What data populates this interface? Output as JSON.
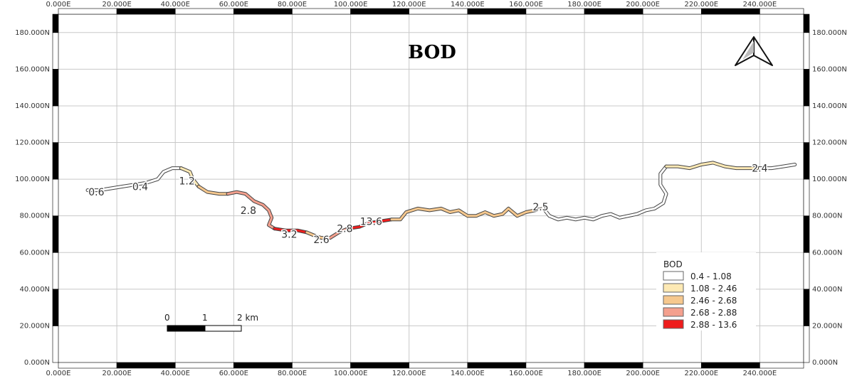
{
  "title": "BOD",
  "axes": {
    "x_ticks": [
      "0.000E",
      "20.000E",
      "40.000E",
      "60.000E",
      "80.000E",
      "100.000E",
      "120.000E",
      "140.000E",
      "160.000E",
      "180.000E",
      "200.000E",
      "220.000E",
      "240.000E"
    ],
    "y_ticks": [
      "0.000N",
      "20.000N",
      "40.000N",
      "60.000N",
      "80.000N",
      "100.000N",
      "120.000N",
      "140.000N",
      "160.000N",
      "180.000N"
    ],
    "x_range": [
      0,
      255
    ],
    "y_range": [
      0,
      190
    ]
  },
  "river_labels": [
    {
      "text": "0.6",
      "x": 13,
      "y": 93
    },
    {
      "text": "0.4",
      "x": 28,
      "y": 96
    },
    {
      "text": "1.2",
      "x": 44,
      "y": 99
    },
    {
      "text": "2.8",
      "x": 65,
      "y": 83
    },
    {
      "text": "3.2",
      "x": 79,
      "y": 70
    },
    {
      "text": "2.6",
      "x": 90,
      "y": 67
    },
    {
      "text": "2.8",
      "x": 98,
      "y": 73
    },
    {
      "text": "13.6",
      "x": 107,
      "y": 77
    },
    {
      "text": "2.5",
      "x": 165,
      "y": 85
    },
    {
      "text": "2.4",
      "x": 240,
      "y": 106
    }
  ],
  "legend": {
    "title": "BOD",
    "items": [
      {
        "label": "0.4 - 1.08",
        "color": "#ffffff"
      },
      {
        "label": "1.08 - 2.46",
        "color": "#fde9b4"
      },
      {
        "label": "2.46 - 2.68",
        "color": "#f6c88e"
      },
      {
        "label": "2.68 - 2.88",
        "color": "#f4a08e"
      },
      {
        "label": "2.88 - 13.6",
        "color": "#ee1c1c"
      }
    ]
  },
  "scale_bar": {
    "labels": [
      "0",
      "1",
      "2 km"
    ]
  },
  "north_arrow": "north-arrow-icon",
  "river": {
    "segments": [
      {
        "bin": 0,
        "points": [
          [
            10,
            94
          ],
          [
            14,
            94
          ],
          [
            18,
            95
          ],
          [
            22,
            96
          ],
          [
            26,
            97
          ],
          [
            30,
            98
          ],
          [
            34,
            100
          ],
          [
            36,
            104
          ],
          [
            39,
            106
          ],
          [
            42,
            106
          ]
        ]
      },
      {
        "bin": 1,
        "points": [
          [
            42,
            106
          ],
          [
            45,
            104
          ],
          [
            46,
            100
          ],
          [
            48,
            96
          ]
        ]
      },
      {
        "bin": 2,
        "points": [
          [
            48,
            96
          ],
          [
            51,
            93
          ],
          [
            55,
            92
          ],
          [
            58,
            92
          ]
        ]
      },
      {
        "bin": 3,
        "points": [
          [
            58,
            92
          ],
          [
            61,
            93
          ],
          [
            64,
            92
          ],
          [
            67,
            88
          ],
          [
            70,
            86
          ],
          [
            72,
            83
          ],
          [
            73,
            79
          ],
          [
            72,
            75
          ],
          [
            74,
            73
          ]
        ]
      },
      {
        "bin": 4,
        "points": [
          [
            74,
            73
          ],
          [
            78,
            72
          ],
          [
            82,
            72
          ],
          [
            85,
            71
          ]
        ]
      },
      {
        "bin": 2,
        "points": [
          [
            85,
            71
          ],
          [
            88,
            69
          ],
          [
            90,
            68
          ],
          [
            93,
            68
          ]
        ]
      },
      {
        "bin": 3,
        "points": [
          [
            93,
            68
          ],
          [
            96,
            71
          ],
          [
            99,
            73
          ]
        ]
      },
      {
        "bin": 4,
        "points": [
          [
            99,
            73
          ],
          [
            103,
            74
          ],
          [
            106,
            76
          ],
          [
            110,
            77
          ],
          [
            114,
            78
          ]
        ]
      },
      {
        "bin": 2,
        "points": [
          [
            114,
            78
          ],
          [
            117,
            78
          ],
          [
            119,
            82
          ],
          [
            123,
            84
          ],
          [
            127,
            83
          ],
          [
            131,
            84
          ],
          [
            134,
            82
          ],
          [
            137,
            83
          ],
          [
            140,
            80
          ],
          [
            143,
            80
          ],
          [
            146,
            82
          ],
          [
            149,
            80
          ],
          [
            152,
            81
          ],
          [
            154,
            84
          ],
          [
            157,
            80
          ],
          [
            160,
            82
          ],
          [
            163,
            83
          ],
          [
            166,
            84
          ]
        ]
      },
      {
        "bin": 0,
        "points": [
          [
            166,
            84
          ],
          [
            168,
            80
          ],
          [
            171,
            78
          ],
          [
            174,
            79
          ],
          [
            177,
            78
          ],
          [
            180,
            79
          ],
          [
            183,
            78
          ],
          [
            186,
            80
          ],
          [
            189,
            81
          ],
          [
            192,
            79
          ],
          [
            195,
            80
          ],
          [
            198,
            81
          ],
          [
            201,
            83
          ],
          [
            204,
            84
          ],
          [
            207,
            87
          ],
          [
            208,
            92
          ],
          [
            206,
            97
          ],
          [
            206,
            103
          ],
          [
            208,
            107
          ]
        ]
      },
      {
        "bin": 1,
        "points": [
          [
            208,
            107
          ],
          [
            212,
            107
          ],
          [
            216,
            106
          ],
          [
            220,
            108
          ],
          [
            224,
            109
          ],
          [
            228,
            107
          ],
          [
            232,
            106
          ],
          [
            236,
            106
          ],
          [
            240,
            106
          ]
        ]
      },
      {
        "bin": 0,
        "points": [
          [
            240,
            106
          ],
          [
            244,
            106
          ],
          [
            248,
            107
          ],
          [
            252,
            108
          ]
        ]
      }
    ]
  }
}
